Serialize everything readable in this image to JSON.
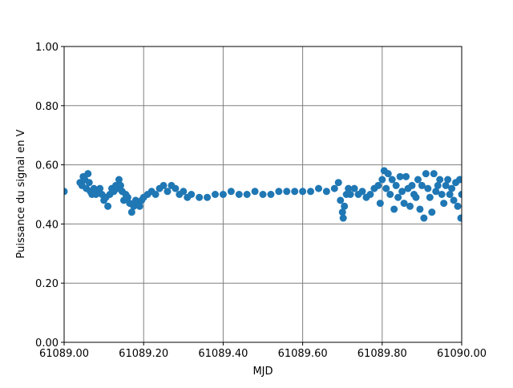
{
  "chart_data": {
    "type": "scatter",
    "x_label": "MJD",
    "y_label": "Puissance du signal en V",
    "color": "#1f77b4",
    "grid": true,
    "xlim": [
      61089.0,
      61090.0
    ],
    "xticks": [
      {
        "value": 61089.0,
        "label": "61089.00"
      },
      {
        "value": 61089.2,
        "label": "61089.20"
      },
      {
        "value": 61089.4,
        "label": "61089.40"
      },
      {
        "value": 61089.6,
        "label": "61089.60"
      },
      {
        "value": 61089.8,
        "label": "61089.80"
      },
      {
        "value": 61090.0,
        "label": "61090.00"
      }
    ],
    "ylim": [
      0,
      1
    ],
    "yticks": [
      {
        "value": 0,
        "label": "0.00"
      },
      {
        "value": 0.2,
        "label": "0.20"
      },
      {
        "value": 0.4,
        "label": "0.40"
      },
      {
        "value": 0.6,
        "label": "0.60"
      },
      {
        "value": 0.8,
        "label": "0.80"
      },
      {
        "value": 1.0,
        "label": "1.00"
      }
    ],
    "x": [
      61089.0,
      61089.04,
      61089.045,
      61089.048,
      61089.052,
      61089.056,
      61089.06,
      61089.063,
      61089.066,
      61089.07,
      61089.075,
      61089.08,
      61089.085,
      61089.09,
      61089.095,
      61089.1,
      61089.105,
      61089.11,
      61089.115,
      61089.12,
      61089.125,
      61089.13,
      61089.135,
      61089.138,
      61089.142,
      61089.146,
      61089.15,
      61089.155,
      61089.16,
      61089.165,
      61089.17,
      61089.175,
      61089.18,
      61089.185,
      61089.19,
      61089.195,
      61089.2,
      61089.21,
      61089.22,
      61089.23,
      61089.24,
      61089.25,
      61089.26,
      61089.27,
      61089.28,
      61089.29,
      61089.3,
      61089.31,
      61089.32,
      61089.34,
      61089.36,
      61089.38,
      61089.4,
      61089.42,
      61089.44,
      61089.46,
      61089.48,
      61089.5,
      61089.52,
      61089.54,
      61089.56,
      61089.58,
      61089.6,
      61089.62,
      61089.64,
      61089.66,
      61089.68,
      61089.69,
      61089.695,
      61089.7,
      61089.702,
      61089.705,
      61089.71,
      61089.715,
      61089.72,
      61089.73,
      61089.74,
      61089.75,
      61089.76,
      61089.77,
      61089.78,
      61089.79,
      61089.795,
      61089.8,
      61089.805,
      61089.81,
      61089.815,
      61089.82,
      61089.825,
      61089.83,
      61089.835,
      61089.84,
      61089.845,
      61089.85,
      61089.855,
      61089.86,
      61089.865,
      61089.87,
      61089.875,
      61089.88,
      61089.885,
      61089.89,
      61089.895,
      61089.9,
      61089.905,
      61089.91,
      61089.915,
      61089.92,
      61089.925,
      61089.93,
      61089.935,
      61089.94,
      61089.945,
      61089.95,
      61089.955,
      61089.96,
      61089.965,
      61089.97,
      61089.975,
      61089.98,
      61089.985,
      61089.99,
      61089.995,
      61089.998,
      61090.0
    ],
    "values": [
      0.51,
      0.54,
      0.53,
      0.56,
      0.55,
      0.52,
      0.57,
      0.54,
      0.51,
      0.5,
      0.52,
      0.5,
      0.51,
      0.52,
      0.5,
      0.48,
      0.49,
      0.46,
      0.5,
      0.52,
      0.51,
      0.53,
      0.52,
      0.55,
      0.53,
      0.51,
      0.48,
      0.5,
      0.49,
      0.47,
      0.44,
      0.46,
      0.48,
      0.47,
      0.46,
      0.48,
      0.49,
      0.5,
      0.51,
      0.5,
      0.52,
      0.53,
      0.51,
      0.53,
      0.52,
      0.5,
      0.51,
      0.49,
      0.5,
      0.49,
      0.49,
      0.5,
      0.5,
      0.51,
      0.5,
      0.5,
      0.51,
      0.5,
      0.5,
      0.51,
      0.51,
      0.51,
      0.51,
      0.51,
      0.52,
      0.51,
      0.52,
      0.54,
      0.48,
      0.44,
      0.42,
      0.46,
      0.5,
      0.52,
      0.5,
      0.52,
      0.5,
      0.51,
      0.49,
      0.5,
      0.52,
      0.53,
      0.47,
      0.55,
      0.58,
      0.52,
      0.57,
      0.5,
      0.55,
      0.45,
      0.53,
      0.49,
      0.56,
      0.51,
      0.47,
      0.56,
      0.52,
      0.46,
      0.53,
      0.5,
      0.49,
      0.55,
      0.45,
      0.53,
      0.42,
      0.57,
      0.52,
      0.49,
      0.44,
      0.57,
      0.51,
      0.53,
      0.55,
      0.5,
      0.47,
      0.53,
      0.55,
      0.5,
      0.52,
      0.48,
      0.54,
      0.46,
      0.55,
      0.42,
      0.5
    ]
  }
}
